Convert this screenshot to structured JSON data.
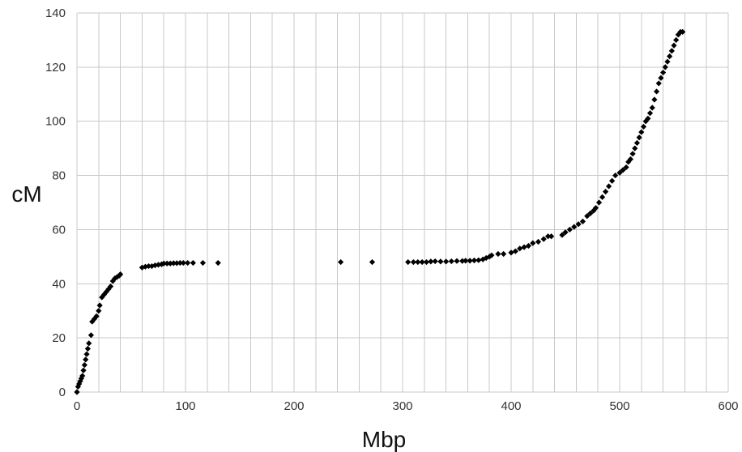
{
  "chart_data": {
    "type": "scatter",
    "title": "",
    "xlabel": "Mbp",
    "ylabel": "cM",
    "xlim": [
      0,
      600
    ],
    "ylim": [
      0,
      140
    ],
    "x_ticks": [
      0,
      100,
      200,
      300,
      400,
      500,
      600
    ],
    "y_ticks": [
      0,
      20,
      40,
      60,
      80,
      100,
      120,
      140
    ],
    "x_tick_labels": [
      "0",
      "100",
      "200",
      "300",
      "400",
      "500",
      "600"
    ],
    "y_tick_labels": [
      "0",
      "20",
      "40",
      "60",
      "80",
      "100",
      "120",
      "140"
    ],
    "grid": "vertical lines every 20 Mbp, horizontal lines every 20 cM",
    "legend": "none",
    "marker": "diamond",
    "marker_color": "#000000",
    "grid_color": "#c8c8c8",
    "series": [
      {
        "points": [
          [
            0,
            0
          ],
          [
            1,
            2
          ],
          [
            2,
            3
          ],
          [
            3,
            4
          ],
          [
            4,
            5
          ],
          [
            5,
            6
          ],
          [
            6,
            8
          ],
          [
            7,
            10
          ],
          [
            8,
            12
          ],
          [
            9,
            14
          ],
          [
            10,
            16
          ],
          [
            11,
            18
          ],
          [
            13,
            21
          ],
          [
            14,
            26
          ],
          [
            16,
            27
          ],
          [
            18,
            28
          ],
          [
            20,
            30
          ],
          [
            21,
            32
          ],
          [
            23,
            35
          ],
          [
            25,
            36
          ],
          [
            27,
            37
          ],
          [
            29,
            38
          ],
          [
            31,
            39
          ],
          [
            33,
            41
          ],
          [
            35,
            42
          ],
          [
            37,
            42.5
          ],
          [
            39,
            43
          ],
          [
            40,
            43.5
          ],
          [
            60,
            46
          ],
          [
            63,
            46.3
          ],
          [
            66,
            46.5
          ],
          [
            69,
            46.5
          ],
          [
            72,
            46.8
          ],
          [
            75,
            47
          ],
          [
            78,
            47.2
          ],
          [
            80,
            47.5
          ],
          [
            83,
            47.5
          ],
          [
            86,
            47.5
          ],
          [
            89,
            47.6
          ],
          [
            92,
            47.6
          ],
          [
            95,
            47.7
          ],
          [
            98,
            47.7
          ],
          [
            102,
            47.7
          ],
          [
            107,
            47.7
          ],
          [
            116,
            47.7
          ],
          [
            130,
            47.7
          ],
          [
            243,
            48
          ],
          [
            272,
            48
          ],
          [
            305,
            48
          ],
          [
            310,
            48
          ],
          [
            314,
            48
          ],
          [
            318,
            48
          ],
          [
            322,
            48
          ],
          [
            326,
            48.2
          ],
          [
            330,
            48.3
          ],
          [
            335,
            48.2
          ],
          [
            340,
            48.2
          ],
          [
            345,
            48.3
          ],
          [
            350,
            48.4
          ],
          [
            355,
            48.4
          ],
          [
            358,
            48.5
          ],
          [
            362,
            48.5
          ],
          [
            366,
            48.6
          ],
          [
            370,
            48.7
          ],
          [
            374,
            49
          ],
          [
            377,
            49.5
          ],
          [
            380,
            50
          ],
          [
            382,
            50.5
          ],
          [
            388,
            51
          ],
          [
            393,
            51
          ],
          [
            400,
            51.5
          ],
          [
            404,
            52
          ],
          [
            408,
            53
          ],
          [
            412,
            53.5
          ],
          [
            416,
            54
          ],
          [
            420,
            55
          ],
          [
            425,
            55.5
          ],
          [
            430,
            56.5
          ],
          [
            434,
            57.5
          ],
          [
            437,
            57.5
          ],
          [
            447,
            58
          ],
          [
            450,
            59
          ],
          [
            454,
            60
          ],
          [
            458,
            61
          ],
          [
            462,
            62
          ],
          [
            466,
            63
          ],
          [
            470,
            65
          ],
          [
            473,
            66
          ],
          [
            476,
            67
          ],
          [
            478,
            68
          ],
          [
            481,
            70
          ],
          [
            484,
            72
          ],
          [
            487,
            74
          ],
          [
            490,
            76
          ],
          [
            493,
            78
          ],
          [
            496,
            80
          ],
          [
            500,
            81
          ],
          [
            503,
            82
          ],
          [
            506,
            83
          ],
          [
            508,
            85
          ],
          [
            510,
            86
          ],
          [
            512,
            88
          ],
          [
            514,
            90
          ],
          [
            516,
            92
          ],
          [
            518,
            94
          ],
          [
            520,
            96
          ],
          [
            522,
            98
          ],
          [
            524,
            100
          ],
          [
            526,
            101
          ],
          [
            528,
            103
          ],
          [
            530,
            105
          ],
          [
            532,
            108
          ],
          [
            534,
            111
          ],
          [
            536,
            114
          ],
          [
            538,
            116
          ],
          [
            540,
            118
          ],
          [
            542,
            120
          ],
          [
            544,
            122
          ],
          [
            546,
            124
          ],
          [
            548,
            126
          ],
          [
            550,
            128
          ],
          [
            552,
            130
          ],
          [
            554,
            132
          ],
          [
            556,
            133
          ],
          [
            558,
            133
          ]
        ]
      }
    ]
  }
}
